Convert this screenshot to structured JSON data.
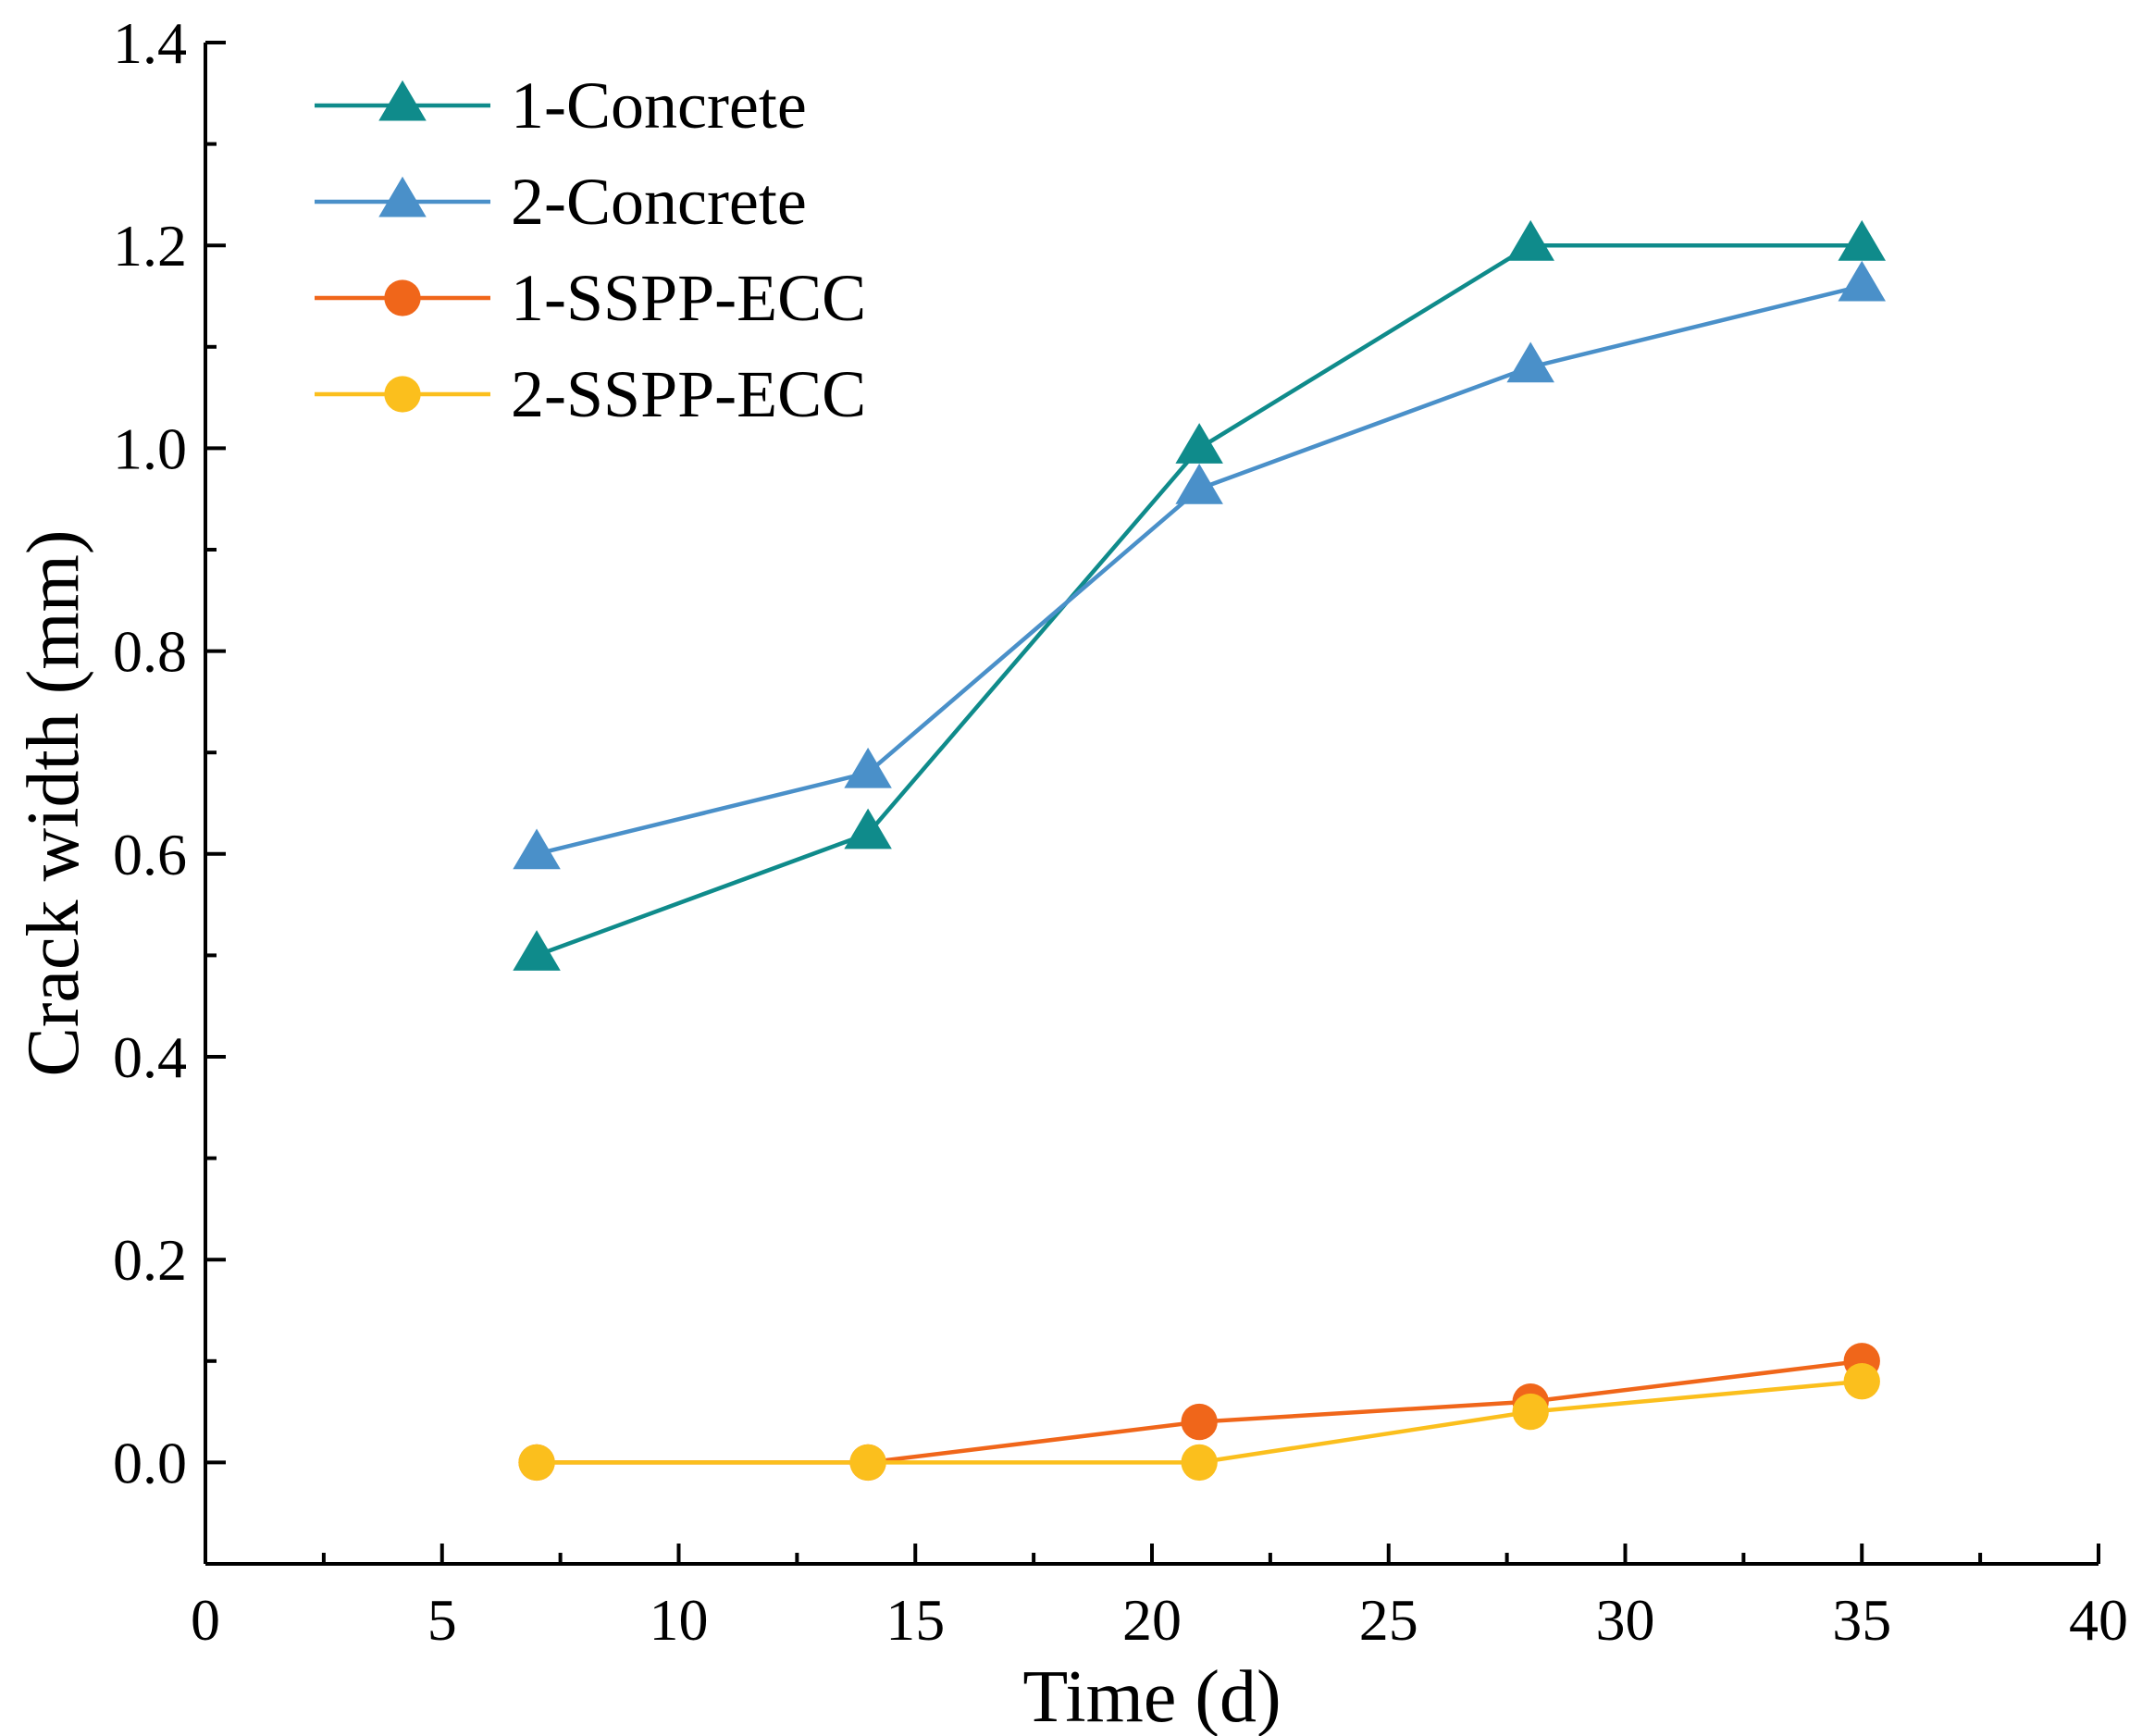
{
  "chart_data": {
    "type": "line",
    "title": "",
    "xlabel": "Time (d)",
    "ylabel": "Crack width (mm)",
    "xlim": [
      0,
      40
    ],
    "ylim": [
      -0.1,
      1.4
    ],
    "xticks": [
      "0",
      "5",
      "10",
      "15",
      "20",
      "25",
      "30",
      "35",
      "40"
    ],
    "yticks": [
      "0.0",
      "0.2",
      "0.4",
      "0.6",
      "0.8",
      "1.0",
      "1.2",
      "1.4"
    ],
    "grid": false,
    "legend_position": "top-left",
    "x": [
      7,
      14,
      21,
      28,
      35
    ],
    "series": [
      {
        "name": "1-Concrete",
        "marker": "triangle",
        "color": "#0f8b8b",
        "values": [
          0.5,
          0.62,
          1.0,
          1.2,
          1.2
        ]
      },
      {
        "name": "2-Concrete",
        "marker": "triangle",
        "color": "#4a90c9",
        "values": [
          0.6,
          0.68,
          0.96,
          1.08,
          1.16
        ]
      },
      {
        "name": "1-SSPP-ECC",
        "marker": "circle",
        "color": "#f0661a",
        "values": [
          0.0,
          0.0,
          0.04,
          0.06,
          0.1
        ]
      },
      {
        "name": "2-SSPP-ECC",
        "marker": "circle",
        "color": "#fbbf1d",
        "values": [
          0.0,
          0.0,
          0.0,
          0.05,
          0.08
        ]
      }
    ]
  }
}
